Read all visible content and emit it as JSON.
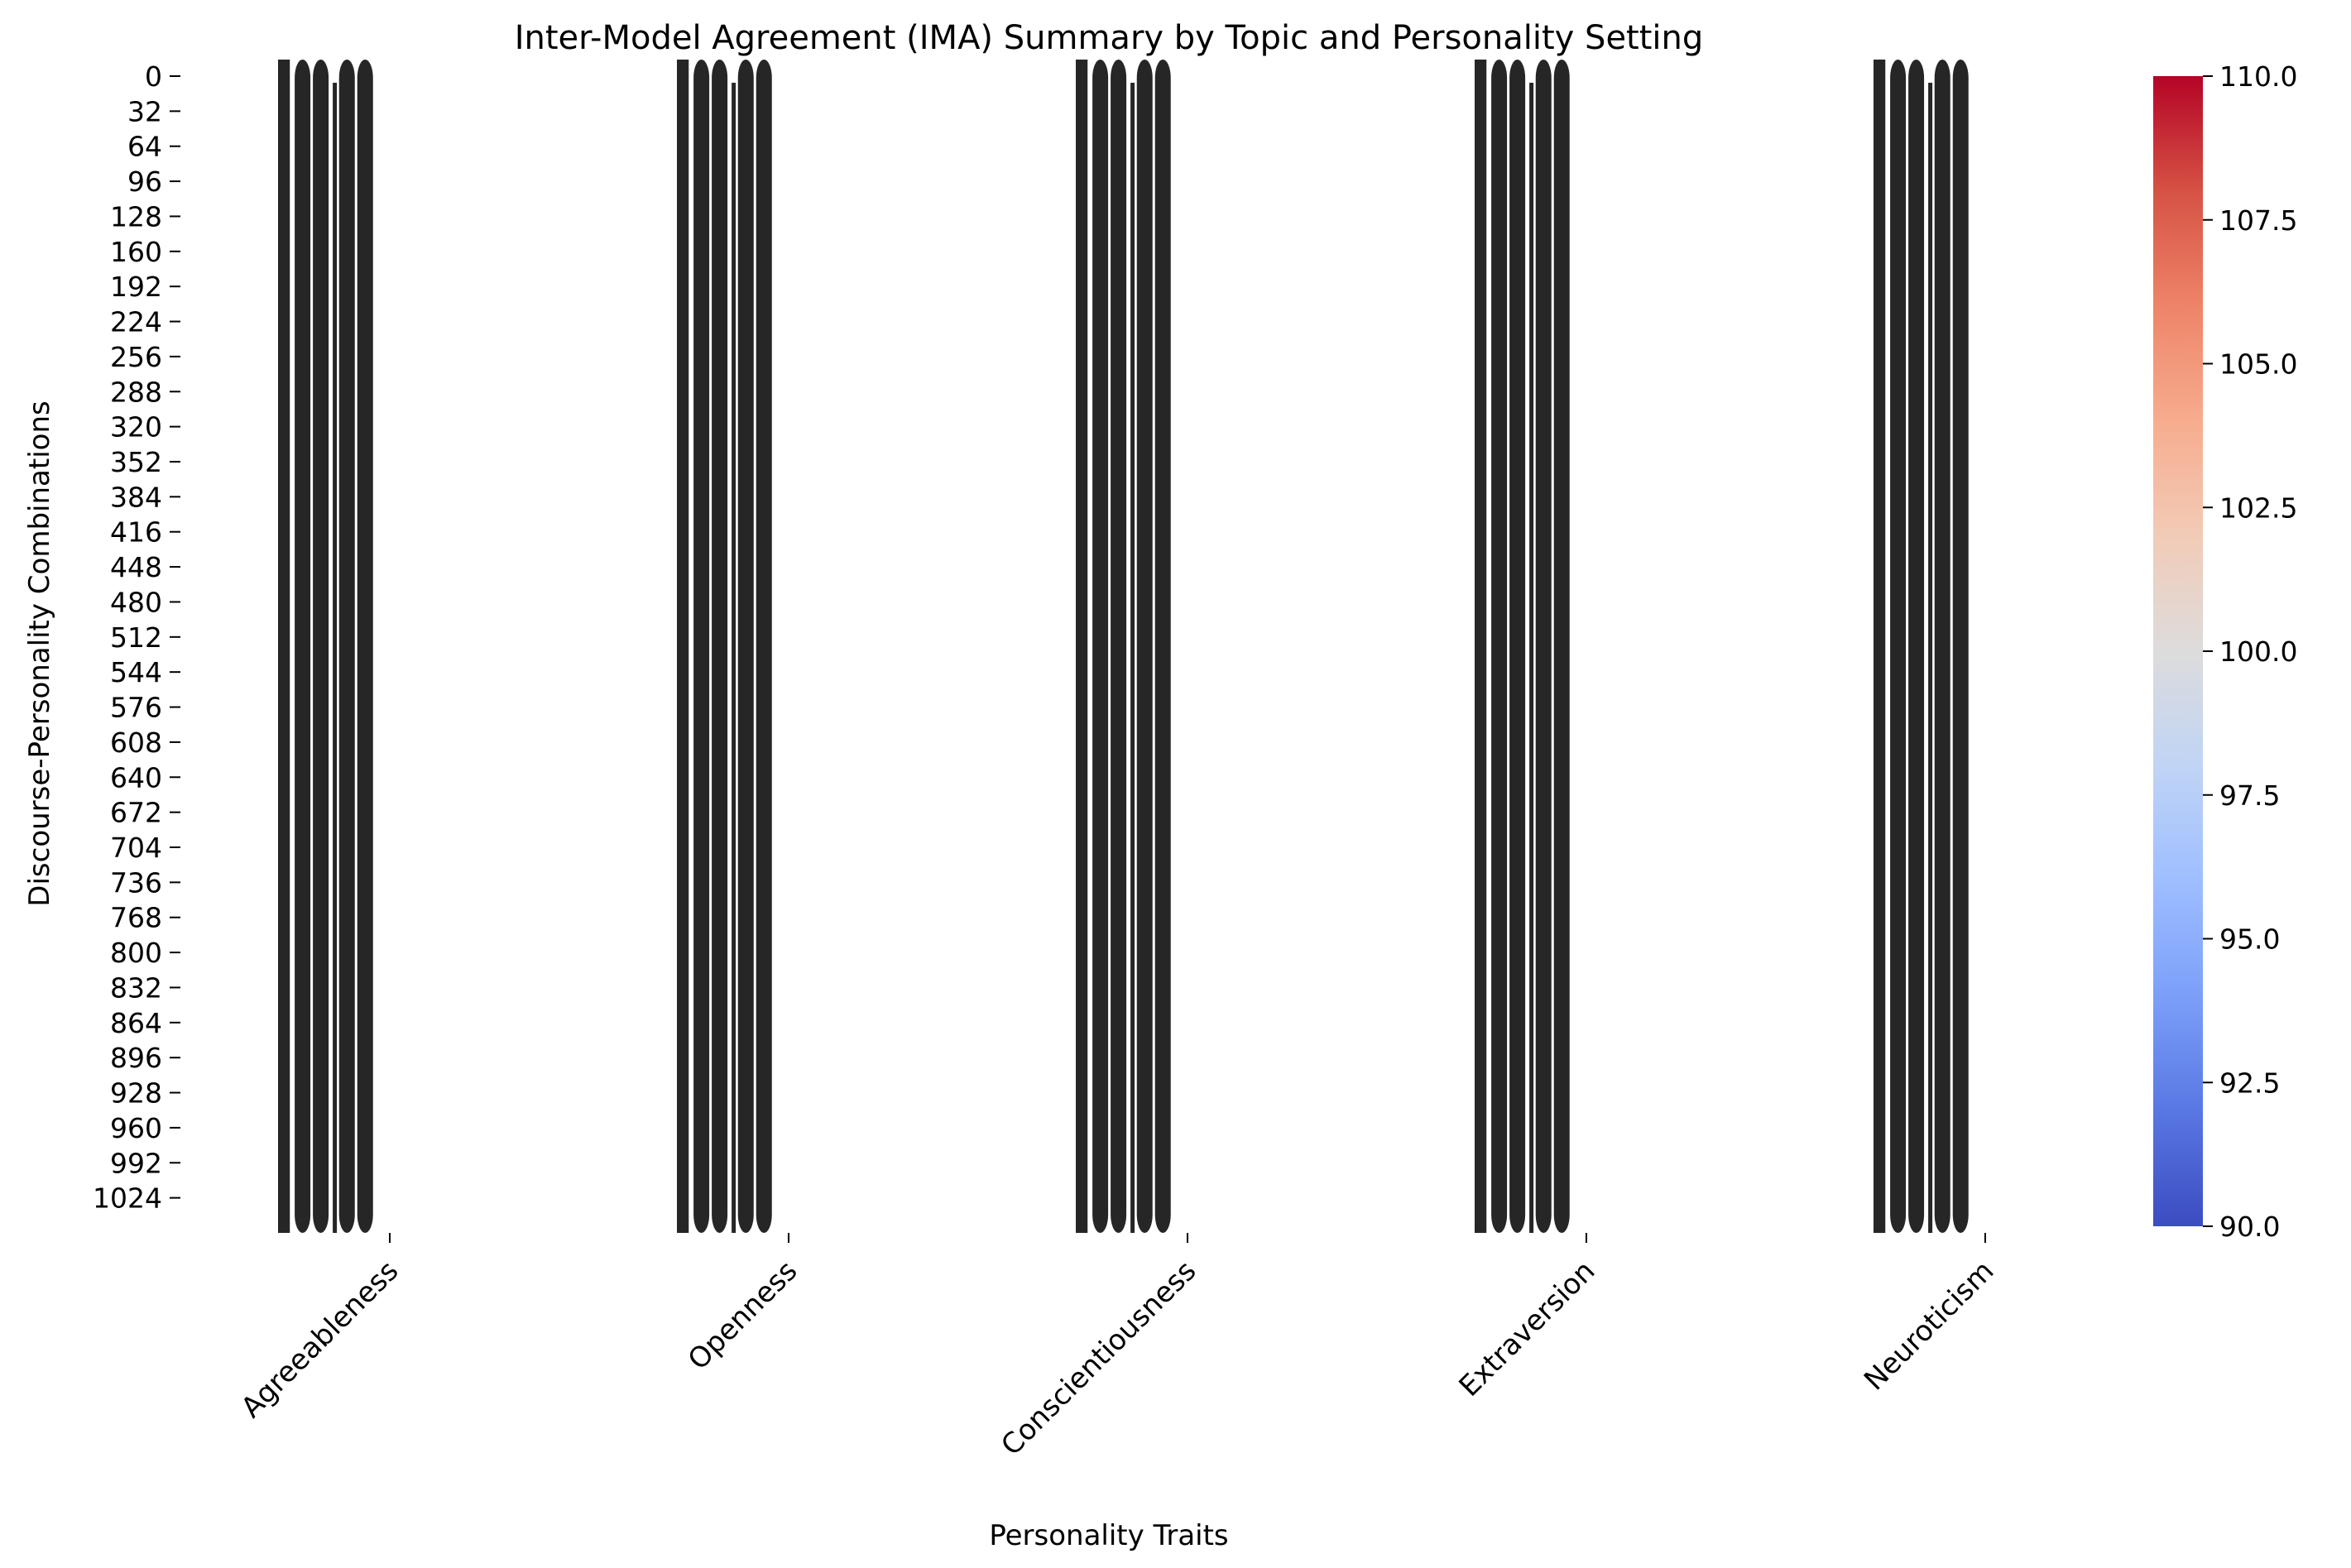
{
  "chart_data": {
    "type": "heatmap",
    "title": "Inter-Model Agreement (IMA) Summary by Topic and Personality Setting",
    "xlabel": "Personality Traits",
    "ylabel": "Discourse-Personality Combinations",
    "x_categories": [
      "Agreeableness",
      "Openness",
      "Conscientiousness",
      "Extraversion",
      "Neuroticism"
    ],
    "y_ticks": [
      0,
      32,
      64,
      96,
      128,
      160,
      192,
      224,
      256,
      288,
      320,
      352,
      384,
      416,
      448,
      480,
      512,
      544,
      576,
      608,
      640,
      672,
      704,
      736,
      768,
      800,
      832,
      864,
      896,
      928,
      960,
      992,
      1024
    ],
    "ylim": [
      0,
      1056
    ],
    "cell_value": 100,
    "annotation_text": "100.00",
    "colormap": "coolwarm",
    "colorbar": {
      "min": 90.0,
      "max": 110.0,
      "ticks": [
        "90.0",
        "92.5",
        "95.0",
        "97.5",
        "100.0",
        "102.5",
        "105.0",
        "107.5",
        "110.0"
      ],
      "colors": [
        "#3b4cc0",
        "#5977e3",
        "#7b9ff9",
        "#9ebeff",
        "#c0d4f5",
        "#dddcdc",
        "#f2cbb7",
        "#f7ac8e",
        "#ee8468",
        "#d65244",
        "#b40426"
      ]
    },
    "annotation_color": "#262626",
    "cell_fill": "#ffffff",
    "grid": false,
    "legend": "colorbar-right"
  }
}
